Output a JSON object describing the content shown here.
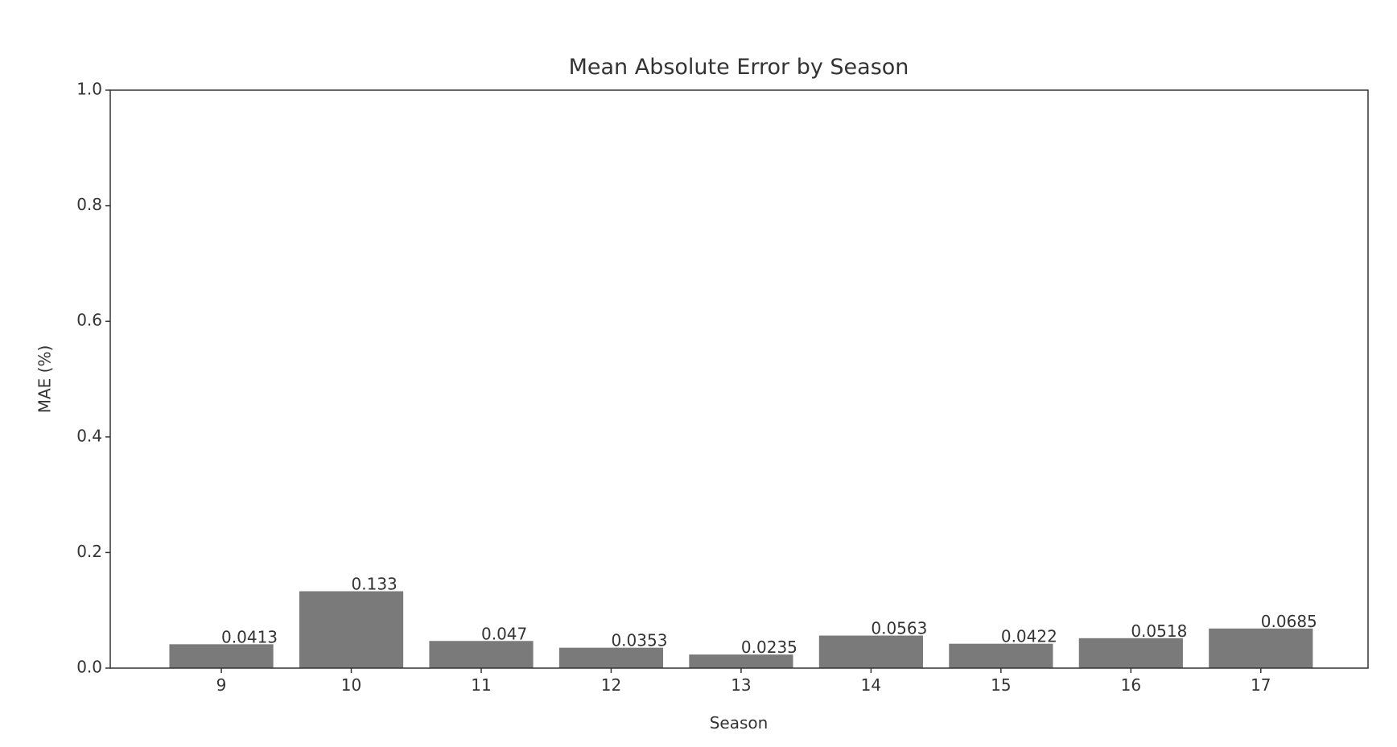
{
  "chart_data": {
    "type": "bar",
    "title": "Mean Absolute Error by Season",
    "x_label": "Season",
    "y_label": "MAE (%)",
    "categories": [
      "9",
      "10",
      "11",
      "12",
      "13",
      "14",
      "15",
      "16",
      "17"
    ],
    "values": [
      0.0413,
      0.133,
      0.047,
      0.0353,
      0.0235,
      0.0563,
      0.0422,
      0.0518,
      0.0685
    ],
    "color": "#7a7a7a",
    "ylim": [
      0,
      1
    ],
    "yticks": [
      {
        "value": 0,
        "label": "0.0"
      },
      0.2,
      0.4,
      0.6,
      0.8,
      {
        "value": 1,
        "label": "1.0"
      }
    ]
  }
}
